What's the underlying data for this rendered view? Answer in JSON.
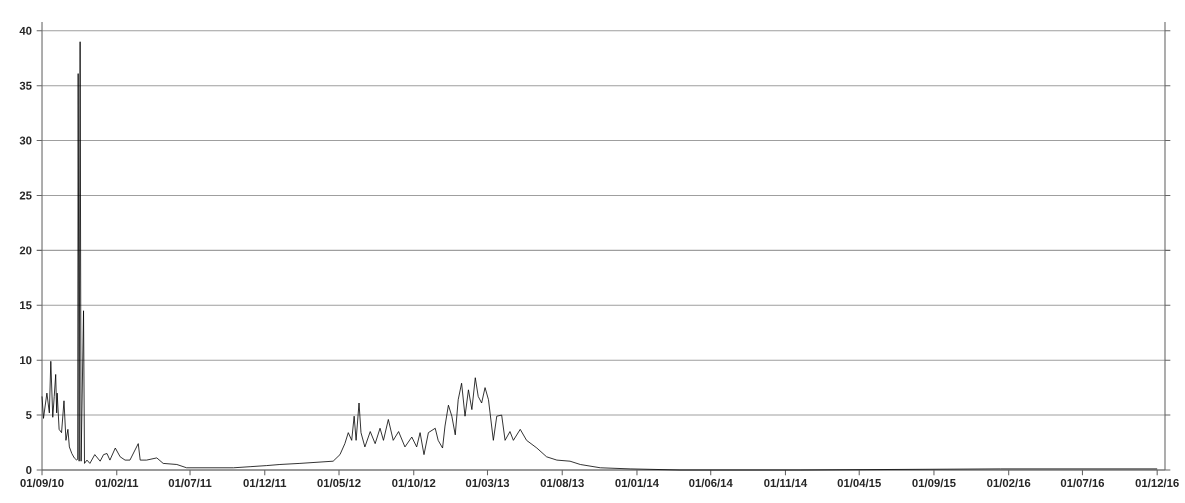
{
  "chart_data": {
    "type": "line",
    "color": "#000000",
    "line_style": "solid",
    "grid": "y",
    "xlim": [
      "2010-09-01",
      "2016-12-17"
    ],
    "ylim": [
      0,
      40.8
    ],
    "xticks": [
      {
        "value": "2010-09-01",
        "label": "01/09/10"
      },
      {
        "value": "2011-02-01",
        "label": "01/02/11"
      },
      {
        "value": "2011-07-01",
        "label": "01/07/11"
      },
      {
        "value": "2011-12-01",
        "label": "01/12/11"
      },
      {
        "value": "2012-05-01",
        "label": "01/05/12"
      },
      {
        "value": "2012-10-01",
        "label": "01/10/12"
      },
      {
        "value": "2013-03-01",
        "label": "01/03/13"
      },
      {
        "value": "2013-08-01",
        "label": "01/08/13"
      },
      {
        "value": "2014-01-01",
        "label": "01/01/14"
      },
      {
        "value": "2014-06-01",
        "label": "01/06/14"
      },
      {
        "value": "2014-11-01",
        "label": "01/11/14"
      },
      {
        "value": "2015-04-01",
        "label": "01/04/15"
      },
      {
        "value": "2015-09-01",
        "label": "01/09/15"
      },
      {
        "value": "2016-02-01",
        "label": "01/02/16"
      },
      {
        "value": "2016-07-01",
        "label": "01/07/16"
      },
      {
        "value": "2016-12-01",
        "label": "01/12/16"
      }
    ],
    "yticks": [
      0,
      5,
      10,
      15,
      20,
      25,
      30,
      35,
      40
    ],
    "x": [
      "2010-09-01",
      "2010-09-04",
      "2010-09-11",
      "2010-09-16",
      "2010-09-19",
      "2010-09-23",
      "2010-09-26",
      "2010-09-29",
      "2010-10-01",
      "2010-10-02",
      "2010-10-06",
      "2010-10-11",
      "2010-10-16",
      "2010-10-20",
      "2010-10-24",
      "2010-10-27",
      "2010-11-01",
      "2010-11-06",
      "2010-11-11",
      "2010-11-13",
      "2010-11-14",
      "2010-11-16",
      "2010-11-18",
      "2010-11-20",
      "2010-11-25",
      "2010-11-27",
      "2010-12-02",
      "2010-12-08",
      "2010-12-18",
      "2010-12-29",
      "2011-01-05",
      "2011-01-12",
      "2011-01-18",
      "2011-01-29",
      "2011-02-08",
      "2011-02-18",
      "2011-02-28",
      "2011-03-17",
      "2011-03-21",
      "2011-04-03",
      "2011-04-24",
      "2011-05-07",
      "2011-06-04",
      "2011-06-24",
      "2011-07-22",
      "2011-09-28",
      "2011-11-01",
      "2011-12-05",
      "2012-01-01",
      "2012-02-11",
      "2012-04-19",
      "2012-05-03",
      "2012-05-13",
      "2012-05-20",
      "2012-05-27",
      "2012-06-01",
      "2012-06-05",
      "2012-06-11",
      "2012-06-15",
      "2012-06-23",
      "2012-07-04",
      "2012-07-14",
      "2012-07-24",
      "2012-07-31",
      "2012-08-10",
      "2012-08-20",
      "2012-08-31",
      "2012-09-13",
      "2012-09-27",
      "2012-10-07",
      "2012-10-14",
      "2012-10-22",
      "2012-10-31",
      "2012-11-14",
      "2012-11-20",
      "2012-11-29",
      "2012-12-04",
      "2012-12-11",
      "2012-12-18",
      "2012-12-25",
      "2012-12-31",
      "2013-01-07",
      "2013-01-14",
      "2013-01-21",
      "2013-01-28",
      "2013-02-04",
      "2013-02-10",
      "2013-02-17",
      "2013-02-24",
      "2013-03-03",
      "2013-03-13",
      "2013-03-20",
      "2013-03-30",
      "2013-04-06",
      "2013-04-16",
      "2013-04-23",
      "2013-05-07",
      "2013-05-20",
      "2013-06-10",
      "2013-06-30",
      "2013-07-21",
      "2013-08-17",
      "2013-09-07",
      "2013-10-18",
      "2013-12-18",
      "2014-03-30",
      "2014-12-01",
      "2016-01-15",
      "2016-12-01"
    ],
    "values": [
      6.7,
      4.7,
      7.0,
      5.2,
      9.9,
      4.8,
      6.7,
      8.7,
      5.2,
      7.0,
      3.7,
      3.4,
      6.3,
      2.7,
      3.7,
      2.1,
      1.5,
      1.1,
      0.9,
      1.0,
      36.1,
      0.8,
      39.0,
      0.8,
      14.5,
      0.6,
      0.9,
      0.6,
      1.4,
      0.8,
      1.4,
      1.5,
      0.9,
      2.0,
      1.2,
      0.9,
      0.9,
      2.4,
      0.9,
      0.9,
      1.1,
      0.6,
      0.5,
      0.2,
      0.2,
      0.2,
      0.3,
      0.4,
      0.5,
      0.6,
      0.8,
      1.4,
      2.4,
      3.4,
      2.7,
      4.9,
      2.7,
      6.1,
      3.4,
      2.1,
      3.5,
      2.4,
      3.8,
      2.7,
      4.6,
      2.7,
      3.5,
      2.1,
      3.0,
      2.1,
      3.4,
      1.4,
      3.4,
      3.8,
      2.7,
      2.0,
      4.0,
      5.9,
      4.9,
      3.2,
      6.4,
      7.9,
      4.9,
      7.3,
      5.5,
      8.4,
      6.7,
      6.1,
      7.5,
      6.4,
      2.7,
      4.9,
      5.0,
      2.7,
      3.5,
      2.7,
      3.7,
      2.7,
      2.0,
      1.2,
      0.9,
      0.8,
      0.5,
      0.2,
      0.1,
      0.0,
      0.0,
      0.1,
      0.1
    ]
  }
}
